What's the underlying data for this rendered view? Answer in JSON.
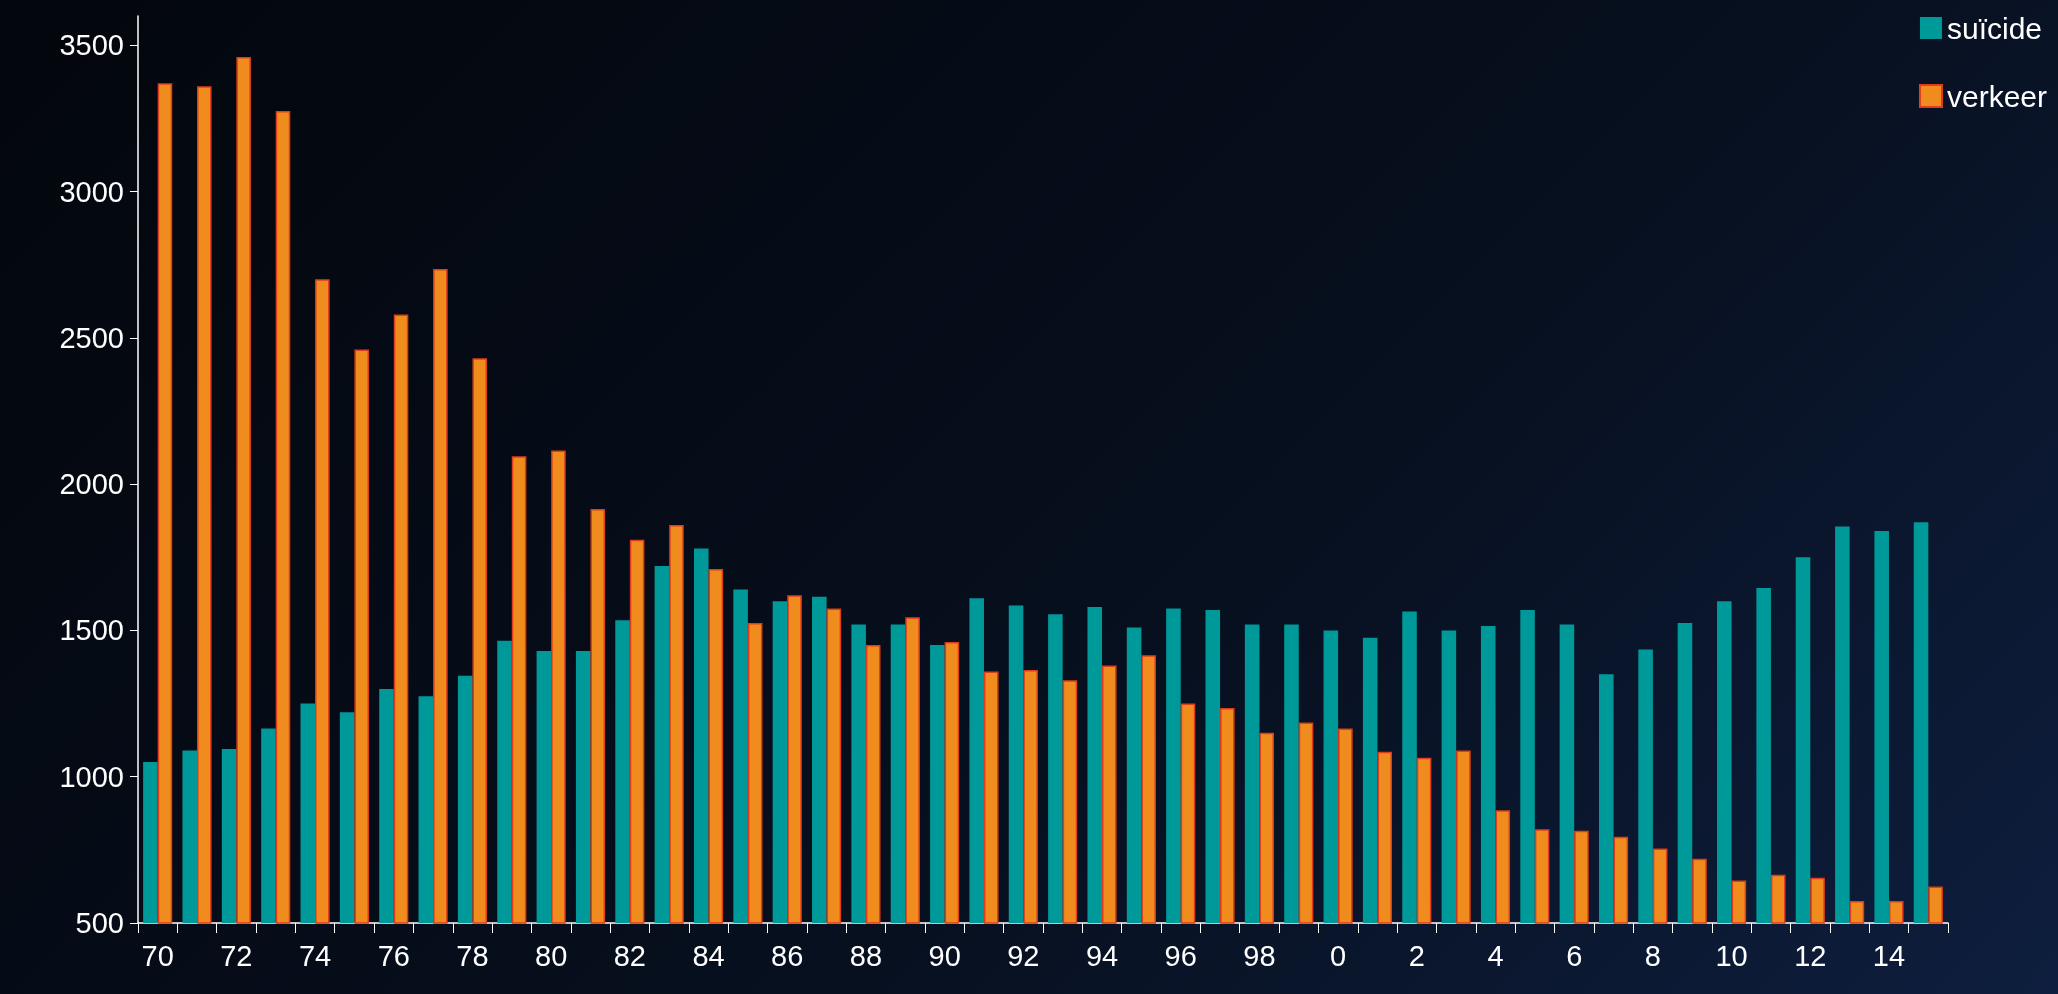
{
  "chart_data": {
    "type": "bar",
    "categories": [
      "70",
      null,
      "72",
      null,
      "74",
      null,
      "76",
      null,
      "78",
      null,
      "80",
      null,
      "82",
      null,
      "84",
      null,
      "86",
      null,
      "88",
      null,
      "90",
      null,
      "92",
      null,
      "94",
      null,
      "96",
      null,
      "98",
      null,
      "0",
      null,
      "2",
      null,
      "4",
      null,
      "6",
      null,
      "8",
      null,
      "10",
      null,
      "12",
      null,
      "14",
      null
    ],
    "series": [
      {
        "name": "suïcide",
        "color": "#009999",
        "values": [
          1050,
          1090,
          1095,
          1165,
          1250,
          1220,
          1300,
          1275,
          1345,
          1465,
          1430,
          1430,
          1535,
          1720,
          1780,
          1640,
          1600,
          1615,
          1520,
          1520,
          1450,
          1610,
          1585,
          1555,
          1580,
          1510,
          1575,
          1570,
          1520,
          1520,
          1500,
          1475,
          1565,
          1500,
          1515,
          1570,
          1520,
          1350,
          1435,
          1525,
          1600,
          1645,
          1750,
          1855,
          1840,
          1870
        ]
      },
      {
        "name": "verkeer",
        "color": "#f08c1e",
        "values": [
          3370,
          3360,
          3460,
          3275,
          2700,
          2460,
          2580,
          2735,
          2430,
          2095,
          2115,
          1915,
          1810,
          1860,
          1710,
          1525,
          1620,
          1575,
          1450,
          1545,
          1460,
          1360,
          1365,
          1330,
          1380,
          1415,
          1250,
          1235,
          1150,
          1185,
          1165,
          1085,
          1065,
          1090,
          885,
          820,
          815,
          795,
          755,
          720,
          645,
          665,
          655,
          575,
          575,
          625
        ]
      }
    ],
    "ylim": [
      500,
      3600
    ],
    "yticks": [
      500,
      1000,
      1500,
      2000,
      2500,
      3000,
      3500
    ],
    "grid": false,
    "legend": "top right"
  }
}
